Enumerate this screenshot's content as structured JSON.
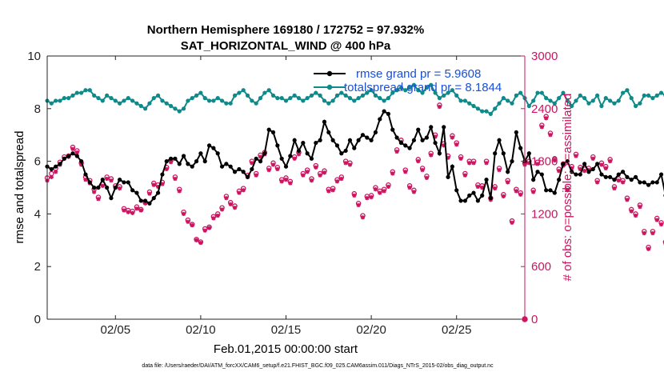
{
  "chart_data": {
    "type": "line",
    "title": "Northern Hemisphere 169180 / 172752 = 97.932%",
    "subtitle": "SAT_HORIZONTAL_WIND @ 400 hPa",
    "xlabel": "Feb.01,2015 00:00:00 start",
    "ylabel_left": "rmse and totalspread",
    "ylabel_right": "# of obs: o=possible; ×=assimilated",
    "footer": "data file: /Users/raeder/DAI/ATM_forcXX/CAM6_setup/f.e21.FHIST_BGC.f09_025.CAM6assim.011/Diags_NTrS_2015-02/obs_diag_output.nc",
    "xlim": [
      1.0,
      29.0
    ],
    "ylim_left": [
      0,
      10
    ],
    "ylim_right": [
      0,
      3000
    ],
    "x_ticks": [
      5,
      10,
      15,
      20,
      25
    ],
    "x_tick_labels": [
      "02/05",
      "02/10",
      "02/15",
      "02/20",
      "02/25"
    ],
    "y_left_ticks": [
      "0",
      "2",
      "4",
      "6",
      "8",
      "10"
    ],
    "y_right_ticks": [
      "0",
      "600",
      "1200",
      "1800",
      "2400",
      "3000"
    ],
    "colors": {
      "rmse": "#000000",
      "spread": "#0e8a8a",
      "obs": "#cc1460",
      "legend_text": "#1a4fd6"
    },
    "series": [
      {
        "name": "rmse grand pr = 5.9608",
        "axis": "left",
        "start_day": 1.0,
        "step": 0.25,
        "values": [
          5.8,
          5.7,
          5.8,
          5.9,
          6.1,
          6.2,
          6.3,
          6.2,
          6.0,
          5.5,
          5.2,
          5.0,
          5.0,
          5.3,
          5.0,
          4.6,
          5.0,
          5.3,
          5.2,
          5.2,
          4.9,
          4.8,
          4.5,
          4.5,
          4.4,
          4.6,
          4.8,
          5.5,
          6.0,
          6.1,
          6.1,
          5.9,
          6.2,
          5.9,
          5.8,
          6.0,
          6.3,
          6.0,
          6.6,
          6.5,
          6.3,
          5.8,
          5.9,
          5.8,
          5.6,
          5.7,
          5.6,
          5.4,
          5.7,
          6.1,
          6.0,
          6.3,
          7.2,
          7.1,
          6.6,
          6.1,
          5.8,
          6.2,
          6.8,
          6.4,
          6.7,
          6.3,
          6.1,
          6.7,
          6.8,
          7.5,
          7.1,
          6.8,
          6.6,
          6.3,
          6.4,
          6.8,
          6.5,
          6.8,
          7.0,
          6.9,
          6.8,
          7.1,
          7.6,
          7.9,
          7.8,
          7.2,
          6.9,
          6.7,
          6.6,
          6.5,
          6.8,
          7.2,
          6.8,
          6.9,
          7.3,
          6.7,
          6.3,
          7.3,
          5.4,
          5.8,
          4.9,
          4.5,
          4.5,
          4.7,
          4.8,
          4.5,
          4.7,
          5.3,
          4.6,
          6.3,
          6.8,
          6.3,
          5.6,
          6.0,
          7.1,
          6.5,
          6.0,
          6.3,
          5.3,
          5.6,
          5.5,
          4.9,
          4.9,
          4.8,
          5.3,
          5.9,
          6.0,
          5.6,
          5.5,
          5.5,
          5.9,
          5.6,
          5.7,
          5.9,
          5.5,
          5.4,
          5.4,
          5.3,
          5.5,
          5.6,
          5.4,
          5.3,
          5.4,
          5.2,
          5.2,
          5.1,
          5.2,
          5.2,
          5.5,
          4.7,
          4.4,
          4.6,
          4.7,
          4.6,
          4.7,
          4.7
        ]
      },
      {
        "name": "totalspread grand pr = 8.1844",
        "axis": "left",
        "start_day": 1.0,
        "step": 0.25,
        "values": [
          8.3,
          8.2,
          8.3,
          8.3,
          8.4,
          8.4,
          8.5,
          8.6,
          8.6,
          8.7,
          8.7,
          8.5,
          8.4,
          8.3,
          8.5,
          8.4,
          8.3,
          8.2,
          8.3,
          8.4,
          8.3,
          8.2,
          8.1,
          8.0,
          8.2,
          8.4,
          8.5,
          8.3,
          8.2,
          8.1,
          8.0,
          7.9,
          8.0,
          8.3,
          8.4,
          8.5,
          8.6,
          8.4,
          8.3,
          8.3,
          8.4,
          8.3,
          8.2,
          8.2,
          8.5,
          8.6,
          8.7,
          8.5,
          8.3,
          8.2,
          8.4,
          8.6,
          8.7,
          8.5,
          8.4,
          8.4,
          8.3,
          8.4,
          8.5,
          8.4,
          8.3,
          8.4,
          8.5,
          8.6,
          8.5,
          8.3,
          8.2,
          8.3,
          8.5,
          8.6,
          8.5,
          8.4,
          8.3,
          8.4,
          8.5,
          8.6,
          8.7,
          8.5,
          8.4,
          8.3,
          8.4,
          8.6,
          8.7,
          8.8,
          8.7,
          8.8,
          8.9,
          8.7,
          8.6,
          8.8,
          8.9,
          8.6,
          8.4,
          8.5,
          8.6,
          8.7,
          8.5,
          8.3,
          8.3,
          8.2,
          8.1,
          8.0,
          7.9,
          7.9,
          7.8,
          8.0,
          8.2,
          8.4,
          8.3,
          8.2,
          8.5,
          8.6,
          8.4,
          8.1,
          8.3,
          8.6,
          8.6,
          8.4,
          8.3,
          8.2,
          8.4,
          8.6,
          8.3,
          8.1,
          8.3,
          8.5,
          8.4,
          8.2,
          8.3,
          8.5,
          8.1,
          8.4,
          8.3,
          8.2,
          8.3,
          8.6,
          8.7,
          8.4,
          8.1,
          8.2,
          8.5,
          8.5,
          8.4,
          8.5,
          8.6,
          8.5,
          8.4,
          8.2,
          8.3,
          8.3,
          8.4,
          8.3,
          8.3,
          8.4,
          8.4,
          8.3
        ]
      },
      {
        "name": "possible",
        "axis": "right",
        "marker": "circle",
        "start_day": 1.0,
        "step": 0.25,
        "values": [
          1610,
          1660,
          1720,
          1790,
          1850,
          1860,
          1960,
          1920,
          1780,
          1620,
          1580,
          1480,
          1390,
          1540,
          1620,
          1600,
          1520,
          1510,
          1260,
          1240,
          1230,
          1280,
          1250,
          1330,
          1450,
          1550,
          1530,
          1560,
          1730,
          1810,
          1620,
          1480,
          1220,
          1130,
          1080,
          910,
          880,
          1030,
          1050,
          1170,
          1200,
          1270,
          1400,
          1330,
          1290,
          1460,
          1490,
          1640,
          1800,
          1660,
          1870,
          1900,
          1720,
          1780,
          1730,
          1590,
          1610,
          1570,
          1850,
          1900,
          1660,
          1700,
          1600,
          1750,
          1660,
          1690,
          1480,
          1490,
          1590,
          1620,
          1800,
          1780,
          1430,
          1320,
          1180,
          1400,
          1410,
          1500,
          1460,
          1480,
          1530,
          1680,
          1930,
          2040,
          1700,
          1520,
          1470,
          1820,
          1720,
          1630,
          1890,
          2100,
          2440,
          2000,
          1860,
          2090,
          2010,
          1850,
          1660,
          1800,
          1800,
          1530,
          1520,
          1800,
          1380,
          1510,
          1720,
          1420,
          1580,
          1120,
          1480,
          1440,
          1780,
          1800,
          1470,
          1790,
          2210,
          2310,
          2120,
          1830,
          1710,
          1770,
          1490,
          1740,
          1880,
          1730,
          1710,
          1720,
          1850,
          1580,
          1780,
          1740,
          1820,
          1510,
          1600,
          1580,
          1380,
          1250,
          1200,
          1300,
          1000,
          820,
          1000,
          1150,
          1100,
          880,
          850,
          1080,
          1130,
          1180,
          700,
          870,
          890,
          960,
          1120,
          1250
        ]
      },
      {
        "name": "assimilated",
        "axis": "right",
        "marker": "x",
        "start_day": 1.0,
        "step": 0.25,
        "values": [
          1580,
          1620,
          1680,
          1760,
          1830,
          1850,
          1940,
          1900,
          1760,
          1590,
          1550,
          1450,
          1370,
          1520,
          1600,
          1580,
          1500,
          1490,
          1240,
          1220,
          1210,
          1260,
          1240,
          1320,
          1430,
          1530,
          1510,
          1540,
          1710,
          1790,
          1600,
          1460,
          1200,
          1110,
          1070,
          900,
          870,
          1010,
          1040,
          1150,
          1180,
          1250,
          1380,
          1310,
          1270,
          1440,
          1470,
          1620,
          1780,
          1640,
          1850,
          1880,
          1700,
          1760,
          1710,
          1570,
          1590,
          1550,
          1830,
          1880,
          1640,
          1680,
          1580,
          1730,
          1640,
          1670,
          1460,
          1470,
          1570,
          1600,
          1780,
          1760,
          1410,
          1300,
          1160,
          1380,
          1390,
          1480,
          1440,
          1460,
          1510,
          1660,
          1910,
          2020,
          1680,
          1500,
          1450,
          1800,
          1700,
          1610,
          1870,
          2080,
          2420,
          1980,
          1840,
          2070,
          1990,
          1830,
          1640,
          1780,
          1780,
          1510,
          1500,
          1780,
          1360,
          1490,
          1700,
          1400,
          1560,
          1100,
          1460,
          1420,
          1760,
          1780,
          1450,
          1770,
          2190,
          2290,
          2100,
          1810,
          1690,
          1750,
          1470,
          1720,
          1860,
          1710,
          1690,
          1700,
          1830,
          1560,
          1760,
          1720,
          1800,
          1490,
          1580,
          1560,
          1360,
          1230,
          1180,
          1280,
          980,
          800,
          980,
          1130,
          1080,
          860,
          830,
          1060,
          1110,
          1160,
          690,
          860,
          870,
          940,
          1100,
          1230
        ]
      }
    ],
    "extra_points": [
      {
        "x": 29.0,
        "y": 0,
        "axis": "right",
        "marker": "circle"
      }
    ],
    "legend_position": "top-right",
    "grid": false
  }
}
